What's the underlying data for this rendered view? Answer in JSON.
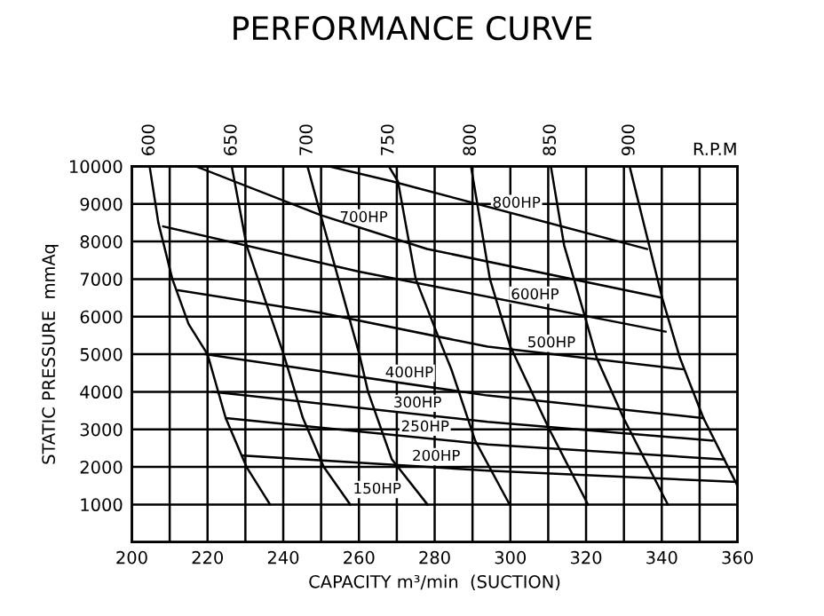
{
  "chart_data": {
    "type": "line",
    "title": "PERFORMANCE CURVE",
    "xlabel": "CAPACITY m³/min  (SUCTION)",
    "ylabel": "STATIC PRESSURE  mmAq",
    "xlim": [
      200,
      360
    ],
    "xticks": [
      200,
      {
        "value": 210,
        "label": null
      },
      220,
      {
        "value": 230,
        "label": null
      },
      240,
      {
        "value": 250,
        "label": null
      },
      260,
      {
        "value": 270,
        "label": null
      },
      280,
      {
        "value": 290,
        "label": null
      },
      300,
      {
        "value": 310,
        "label": null
      },
      320,
      {
        "value": 330,
        "label": null
      },
      340,
      {
        "value": 350,
        "label": null
      },
      360
    ],
    "ylim": [
      0,
      10000
    ],
    "yticks": [
      {
        "value": 0,
        "label": null
      },
      1000,
      2000,
      3000,
      4000,
      5000,
      6000,
      7000,
      8000,
      9000,
      10000
    ],
    "grid": true,
    "marker": "none",
    "line_style": "solid",
    "series": [
      {
        "name": "600",
        "color": "#000000",
        "x": [
          204.7,
          207,
          210.7,
          215,
          220,
          224.8,
          230.3,
          236.5
        ],
        "values": [
          10000,
          8500,
          7000,
          5800,
          5000,
          3300,
          2000,
          1000
        ]
      },
      {
        "name": "650",
        "color": "#000000",
        "x": [
          226.4,
          230.3,
          240.1,
          245.2,
          250.7,
          257.7
        ],
        "values": [
          10000,
          7900,
          5000,
          3300,
          2000,
          1000
        ]
      },
      {
        "name": "700",
        "color": "#000000",
        "x": [
          246.4,
          249.9,
          260.1,
          262.4,
          268.7,
          278.1
        ],
        "values": [
          10000,
          8700,
          5000,
          4000,
          2200,
          1000
        ]
      },
      {
        "name": "750",
        "color": "#000000",
        "x": [
          267.9,
          270.3,
          275,
          282,
          284.4,
          290.7,
          299.8
        ],
        "values": [
          10000,
          9600,
          7000,
          5200,
          4600,
          2700,
          1000
        ]
      },
      {
        "name": "800",
        "color": "#000000",
        "x": [
          289.6,
          294.6,
          300,
          310.3,
          320.5
        ],
        "values": [
          10000,
          7000,
          5200,
          3000,
          1000
        ]
      },
      {
        "name": "850",
        "color": "#000000",
        "x": [
          310.7,
          314.2,
          319.7,
          322.8,
          329.9,
          341.6
        ],
        "values": [
          10000,
          7900,
          6000,
          4900,
          3300,
          1000
        ]
      },
      {
        "name": "900",
        "color": "#000000",
        "x": [
          331.5,
          340.1,
          344.8,
          351,
          360
        ],
        "values": [
          10000,
          6500,
          4900,
          3300,
          1500
        ]
      },
      {
        "name": "200HP",
        "color": "#000000",
        "x": [
          229.5,
          294,
          360
        ],
        "values": [
          2300,
          1900,
          1600
        ]
      },
      {
        "name": "250HP",
        "color": "#000000",
        "x": [
          224.8,
          294,
          356.5
        ],
        "values": [
          3300,
          2600,
          2200
        ]
      },
      {
        "name": "300HP",
        "color": "#000000",
        "x": [
          221.3,
          294,
          353.4
        ],
        "values": [
          4000,
          3200,
          2700
        ]
      },
      {
        "name": "400HP",
        "color": "#000000",
        "x": [
          219.3,
          294,
          351
        ],
        "values": [
          5000,
          3900,
          3300
        ]
      },
      {
        "name": "500HP",
        "color": "#000000",
        "x": [
          212.2,
          250,
          294,
          345.5
        ],
        "values": [
          6700,
          6100,
          5200,
          4600
        ]
      },
      {
        "name": "600HP",
        "color": "#000000",
        "x": [
          208.3,
          260,
          341
        ],
        "values": [
          8400,
          7200,
          5600
        ]
      },
      {
        "name": "700HP",
        "color": "#000000",
        "x": [
          216.9,
          249.9,
          278,
          340.1
        ],
        "values": [
          10000,
          8700,
          7800,
          6500
        ]
      },
      {
        "name": "800HP",
        "color": "#000000",
        "x": [
          252,
          268.7,
          336.1
        ],
        "values": [
          10000,
          9600,
          7800
        ]
      }
    ],
    "annotations": [
      "R.P.M",
      "150HP"
    ]
  }
}
